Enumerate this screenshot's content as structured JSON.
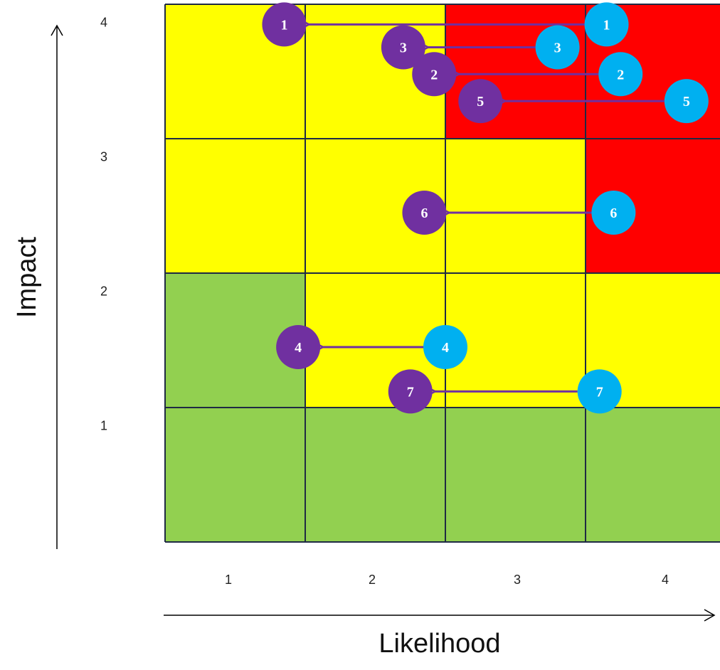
{
  "chart_data": {
    "type": "heatmap",
    "xlabel": "Likelihood",
    "ylabel": "Impact",
    "x_ticks": [
      "1",
      "2",
      "3",
      "4"
    ],
    "y_ticks": [
      "1",
      "2",
      "3",
      "4"
    ],
    "colors": {
      "green": "#92d050",
      "yellow": "#ffff00",
      "red": "#ff0000",
      "before_marker": "#00b0f0",
      "after_marker": "#7030a0",
      "arrow": "#7030a0",
      "grid": "#1f2a44"
    },
    "cells": [
      {
        "likelihood": 1,
        "impact": 4,
        "level": "yellow"
      },
      {
        "likelihood": 2,
        "impact": 4,
        "level": "yellow"
      },
      {
        "likelihood": 3,
        "impact": 4,
        "level": "red"
      },
      {
        "likelihood": 4,
        "impact": 4,
        "level": "red"
      },
      {
        "likelihood": 1,
        "impact": 3,
        "level": "yellow"
      },
      {
        "likelihood": 2,
        "impact": 3,
        "level": "yellow"
      },
      {
        "likelihood": 3,
        "impact": 3,
        "level": "yellow"
      },
      {
        "likelihood": 4,
        "impact": 3,
        "level": "red"
      },
      {
        "likelihood": 1,
        "impact": 2,
        "level": "green"
      },
      {
        "likelihood": 2,
        "impact": 2,
        "level": "yellow"
      },
      {
        "likelihood": 3,
        "impact": 2,
        "level": "yellow"
      },
      {
        "likelihood": 4,
        "impact": 2,
        "level": "yellow"
      },
      {
        "likelihood": 1,
        "impact": 1,
        "level": "green"
      },
      {
        "likelihood": 2,
        "impact": 1,
        "level": "green"
      },
      {
        "likelihood": 3,
        "impact": 1,
        "level": "green"
      },
      {
        "likelihood": 4,
        "impact": 1,
        "level": "green"
      }
    ],
    "risks": [
      {
        "label": "1",
        "before": {
          "likelihood": 3.65,
          "impact": 4.35
        },
        "after": {
          "likelihood": 1.35,
          "impact": 4.35
        }
      },
      {
        "label": "3",
        "before": {
          "likelihood": 3.3,
          "impact": 4.18
        },
        "after": {
          "likelihood": 2.2,
          "impact": 4.18
        }
      },
      {
        "label": "2",
        "before": {
          "likelihood": 3.75,
          "impact": 3.98
        },
        "after": {
          "likelihood": 2.42,
          "impact": 3.98
        }
      },
      {
        "label": "5",
        "before": {
          "likelihood": 4.22,
          "impact": 3.78
        },
        "after": {
          "likelihood": 2.75,
          "impact": 3.78
        }
      },
      {
        "label": "6",
        "before": {
          "likelihood": 3.7,
          "impact": 2.95
        },
        "after": {
          "likelihood": 2.35,
          "impact": 2.95
        }
      },
      {
        "label": "4",
        "before": {
          "likelihood": 2.5,
          "impact": 1.95
        },
        "after": {
          "likelihood": 1.45,
          "impact": 1.95
        }
      },
      {
        "label": "7",
        "before": {
          "likelihood": 3.6,
          "impact": 1.62
        },
        "after": {
          "likelihood": 2.25,
          "impact": 1.62
        }
      }
    ]
  }
}
